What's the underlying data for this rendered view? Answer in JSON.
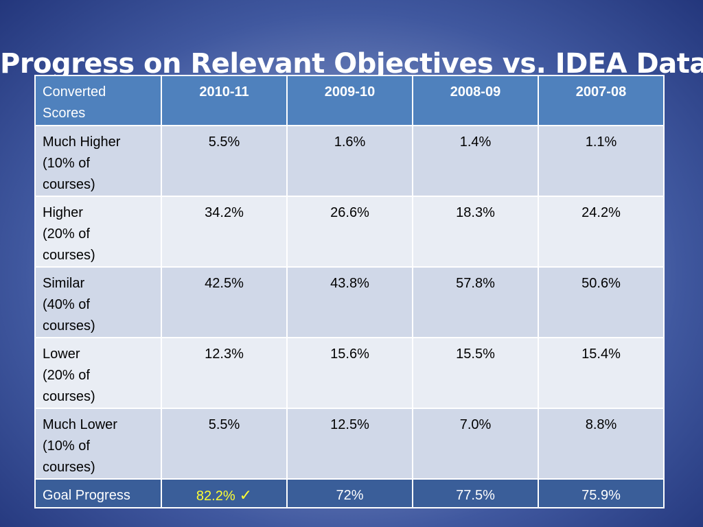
{
  "title": "Progress on Relevant Objectives vs. IDEA Database",
  "table": {
    "header_label": [
      "Converted",
      "Scores"
    ],
    "years": [
      "2010-11",
      "2009-10",
      "2008-09",
      "2007-08"
    ],
    "rows": [
      {
        "label": [
          "Much Higher",
          "(10% of",
          "courses)"
        ],
        "values": [
          "5.5%",
          "1.6%",
          "1.4%",
          "1.1%"
        ]
      },
      {
        "label": [
          "Higher",
          "(20% of",
          "courses)"
        ],
        "values": [
          "34.2%",
          "26.6%",
          "18.3%",
          "24.2%"
        ]
      },
      {
        "label": [
          "Similar",
          "(40% of",
          "courses)"
        ],
        "values": [
          "42.5%",
          "43.8%",
          "57.8%",
          "50.6%"
        ]
      },
      {
        "label": [
          "Lower",
          "(20% of",
          "courses)"
        ],
        "values": [
          "12.3%",
          "15.6%",
          "15.5%",
          "15.4%"
        ]
      },
      {
        "label": [
          "Much Lower",
          "(10% of",
          "courses)"
        ],
        "values": [
          "5.5%",
          "12.5%",
          "7.0%",
          "8.8%"
        ]
      }
    ],
    "goal": {
      "label": "Goal Progress",
      "values": [
        "82.2%",
        "72%",
        "77.5%",
        "75.9%"
      ],
      "check": "✓"
    }
  },
  "colors": {
    "header_fill": "#4f81bd",
    "row_dark": "#d0d8e8",
    "row_light": "#e9edf4",
    "goal_fill": "#3a5e99",
    "goal_highlight": "#ffff33"
  }
}
